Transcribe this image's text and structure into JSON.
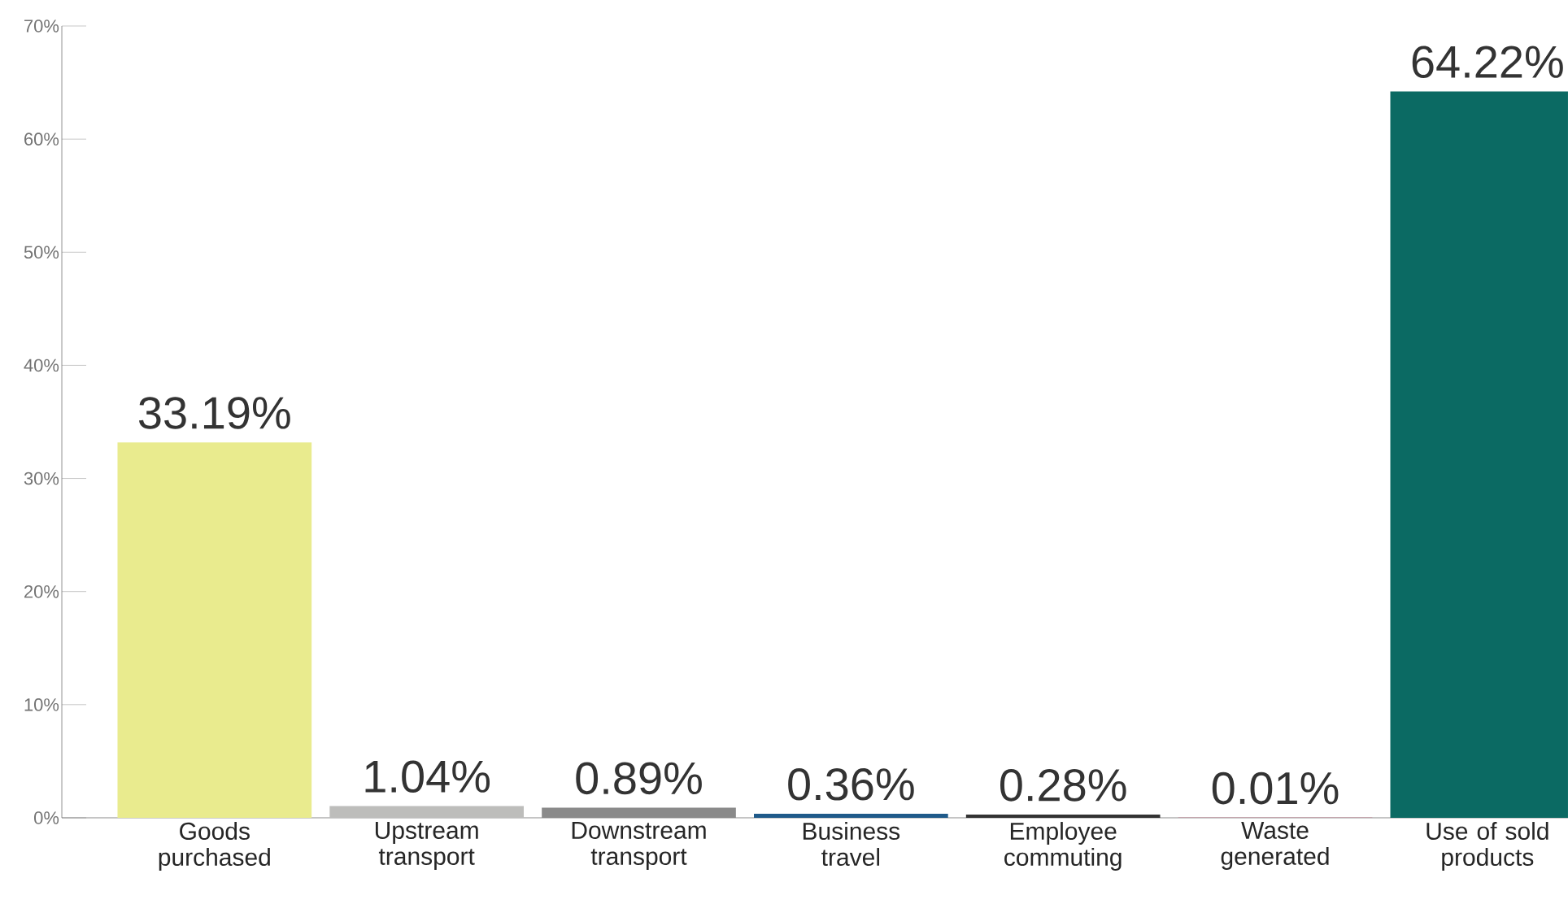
{
  "chart_data": {
    "type": "bar",
    "categories": [
      "Goods purchased",
      "Upstream transport",
      "Downstream transport",
      "Business travel",
      "Employee commuting",
      "Waste generated",
      "Use of sold products"
    ],
    "values": [
      33.19,
      1.04,
      0.89,
      0.36,
      0.28,
      0.01,
      64.22
    ],
    "colors": [
      "#e9eb8e",
      "#bdbdbb",
      "#8a8a8a",
      "#1f5a8a",
      "#333333",
      "#c4496a",
      "#0b6a63"
    ],
    "value_labels": [
      "33.19%",
      "1.04%",
      "0.89%",
      "0.36%",
      "0.28%",
      "0.01%",
      "64.22%"
    ],
    "ylim": [
      0,
      70
    ],
    "yticks": [
      {
        "value": 0,
        "label": "0%"
      },
      {
        "value": 10,
        "label": "10%"
      },
      {
        "value": 20,
        "label": "20%"
      },
      {
        "value": 30,
        "label": "30%"
      },
      {
        "value": 40,
        "label": "40%"
      },
      {
        "value": 50,
        "label": "50%"
      },
      {
        "value": 60,
        "label": "60%"
      },
      {
        "value": 70,
        "label": "70%"
      }
    ]
  }
}
